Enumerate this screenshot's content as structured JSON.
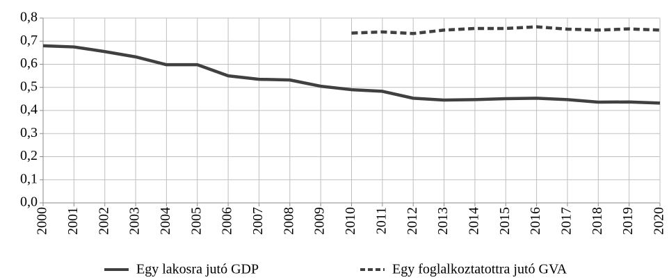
{
  "chart_data": {
    "type": "line",
    "x": [
      2000,
      2001,
      2002,
      2003,
      2004,
      2005,
      2006,
      2007,
      2008,
      2009,
      2010,
      2011,
      2012,
      2013,
      2014,
      2015,
      2016,
      2017,
      2018,
      2019,
      2020
    ],
    "xlim": [
      2000,
      2020
    ],
    "xticks": [
      2000,
      2001,
      2002,
      2003,
      2004,
      2005,
      2006,
      2007,
      2008,
      2009,
      2010,
      2011,
      2012,
      2013,
      2014,
      2015,
      2016,
      2017,
      2018,
      2019,
      2020
    ],
    "ylim": [
      0,
      0.8
    ],
    "yticks": [
      {
        "value": 0,
        "label": "0,0"
      },
      {
        "value": 0.1,
        "label": "0,1"
      },
      {
        "value": 0.2,
        "label": "0,2"
      },
      {
        "value": 0.3,
        "label": "0,3"
      },
      {
        "value": 0.4,
        "label": "0,4"
      },
      {
        "value": 0.5,
        "label": "0,5"
      },
      {
        "value": 0.6,
        "label": "0,6"
      },
      {
        "value": 0.7,
        "label": "0,7"
      },
      {
        "value": 0.8,
        "label": "0,8"
      }
    ],
    "grid": true,
    "legend": "bottom",
    "series": [
      {
        "name": "Egy lakosra jutó GDP",
        "color": "#404040",
        "dash": false,
        "values": [
          0.68,
          0.675,
          0.655,
          0.632,
          0.598,
          0.598,
          0.55,
          0.535,
          0.532,
          0.505,
          0.49,
          0.483,
          0.453,
          0.445,
          0.447,
          0.451,
          0.453,
          0.447,
          0.436,
          0.437,
          0.432
        ]
      },
      {
        "name": "Egy foglalkoztatottra jutó GVA",
        "color": "#404040",
        "dash": true,
        "values": [
          null,
          null,
          null,
          null,
          null,
          null,
          null,
          null,
          null,
          null,
          0.735,
          0.74,
          0.733,
          0.748,
          0.755,
          0.755,
          0.762,
          0.752,
          0.748,
          0.753,
          0.748
        ]
      }
    ]
  }
}
